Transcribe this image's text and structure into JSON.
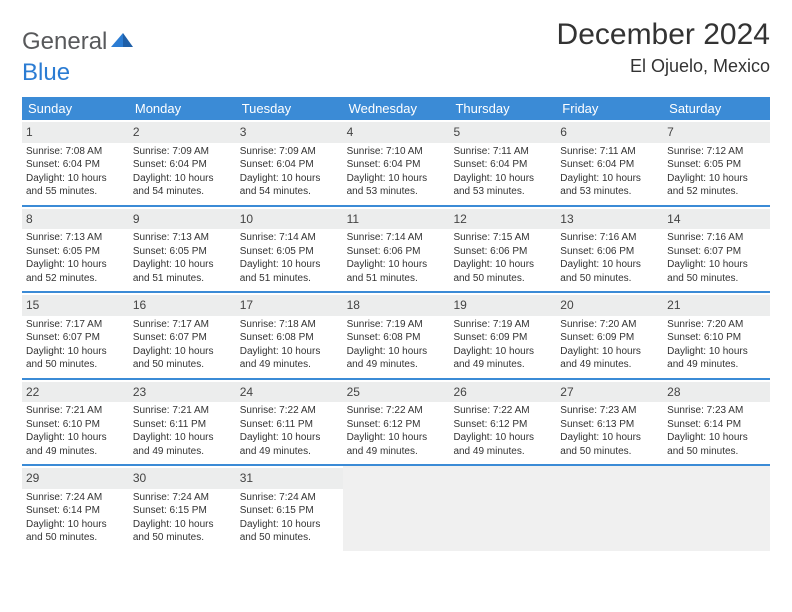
{
  "brand": {
    "part1": "General",
    "part2": "Blue"
  },
  "title": "December 2024",
  "location": "El Ojuelo, Mexico",
  "colors": {
    "header_bg": "#3b8bd6",
    "header_text": "#ffffff",
    "daynum_bg": "#eceded",
    "week_border": "#3b8bd6",
    "brand_grey": "#58595b",
    "brand_blue": "#2b7cd3",
    "empty_bg": "#f0f0f0"
  },
  "day_headers": [
    "Sunday",
    "Monday",
    "Tuesday",
    "Wednesday",
    "Thursday",
    "Friday",
    "Saturday"
  ],
  "weeks": [
    [
      {
        "n": "1",
        "sr": "7:08 AM",
        "ss": "6:04 PM",
        "dl": "10 hours and 55 minutes."
      },
      {
        "n": "2",
        "sr": "7:09 AM",
        "ss": "6:04 PM",
        "dl": "10 hours and 54 minutes."
      },
      {
        "n": "3",
        "sr": "7:09 AM",
        "ss": "6:04 PM",
        "dl": "10 hours and 54 minutes."
      },
      {
        "n": "4",
        "sr": "7:10 AM",
        "ss": "6:04 PM",
        "dl": "10 hours and 53 minutes."
      },
      {
        "n": "5",
        "sr": "7:11 AM",
        "ss": "6:04 PM",
        "dl": "10 hours and 53 minutes."
      },
      {
        "n": "6",
        "sr": "7:11 AM",
        "ss": "6:04 PM",
        "dl": "10 hours and 53 minutes."
      },
      {
        "n": "7",
        "sr": "7:12 AM",
        "ss": "6:05 PM",
        "dl": "10 hours and 52 minutes."
      }
    ],
    [
      {
        "n": "8",
        "sr": "7:13 AM",
        "ss": "6:05 PM",
        "dl": "10 hours and 52 minutes."
      },
      {
        "n": "9",
        "sr": "7:13 AM",
        "ss": "6:05 PM",
        "dl": "10 hours and 51 minutes."
      },
      {
        "n": "10",
        "sr": "7:14 AM",
        "ss": "6:05 PM",
        "dl": "10 hours and 51 minutes."
      },
      {
        "n": "11",
        "sr": "7:14 AM",
        "ss": "6:06 PM",
        "dl": "10 hours and 51 minutes."
      },
      {
        "n": "12",
        "sr": "7:15 AM",
        "ss": "6:06 PM",
        "dl": "10 hours and 50 minutes."
      },
      {
        "n": "13",
        "sr": "7:16 AM",
        "ss": "6:06 PM",
        "dl": "10 hours and 50 minutes."
      },
      {
        "n": "14",
        "sr": "7:16 AM",
        "ss": "6:07 PM",
        "dl": "10 hours and 50 minutes."
      }
    ],
    [
      {
        "n": "15",
        "sr": "7:17 AM",
        "ss": "6:07 PM",
        "dl": "10 hours and 50 minutes."
      },
      {
        "n": "16",
        "sr": "7:17 AM",
        "ss": "6:07 PM",
        "dl": "10 hours and 50 minutes."
      },
      {
        "n": "17",
        "sr": "7:18 AM",
        "ss": "6:08 PM",
        "dl": "10 hours and 49 minutes."
      },
      {
        "n": "18",
        "sr": "7:19 AM",
        "ss": "6:08 PM",
        "dl": "10 hours and 49 minutes."
      },
      {
        "n": "19",
        "sr": "7:19 AM",
        "ss": "6:09 PM",
        "dl": "10 hours and 49 minutes."
      },
      {
        "n": "20",
        "sr": "7:20 AM",
        "ss": "6:09 PM",
        "dl": "10 hours and 49 minutes."
      },
      {
        "n": "21",
        "sr": "7:20 AM",
        "ss": "6:10 PM",
        "dl": "10 hours and 49 minutes."
      }
    ],
    [
      {
        "n": "22",
        "sr": "7:21 AM",
        "ss": "6:10 PM",
        "dl": "10 hours and 49 minutes."
      },
      {
        "n": "23",
        "sr": "7:21 AM",
        "ss": "6:11 PM",
        "dl": "10 hours and 49 minutes."
      },
      {
        "n": "24",
        "sr": "7:22 AM",
        "ss": "6:11 PM",
        "dl": "10 hours and 49 minutes."
      },
      {
        "n": "25",
        "sr": "7:22 AM",
        "ss": "6:12 PM",
        "dl": "10 hours and 49 minutes."
      },
      {
        "n": "26",
        "sr": "7:22 AM",
        "ss": "6:12 PM",
        "dl": "10 hours and 49 minutes."
      },
      {
        "n": "27",
        "sr": "7:23 AM",
        "ss": "6:13 PM",
        "dl": "10 hours and 50 minutes."
      },
      {
        "n": "28",
        "sr": "7:23 AM",
        "ss": "6:14 PM",
        "dl": "10 hours and 50 minutes."
      }
    ],
    [
      {
        "n": "29",
        "sr": "7:24 AM",
        "ss": "6:14 PM",
        "dl": "10 hours and 50 minutes."
      },
      {
        "n": "30",
        "sr": "7:24 AM",
        "ss": "6:15 PM",
        "dl": "10 hours and 50 minutes."
      },
      {
        "n": "31",
        "sr": "7:24 AM",
        "ss": "6:15 PM",
        "dl": "10 hours and 50 minutes."
      },
      null,
      null,
      null,
      null
    ]
  ],
  "labels": {
    "sunrise_prefix": "Sunrise: ",
    "sunset_prefix": "Sunset: ",
    "daylight_prefix": "Daylight: "
  }
}
